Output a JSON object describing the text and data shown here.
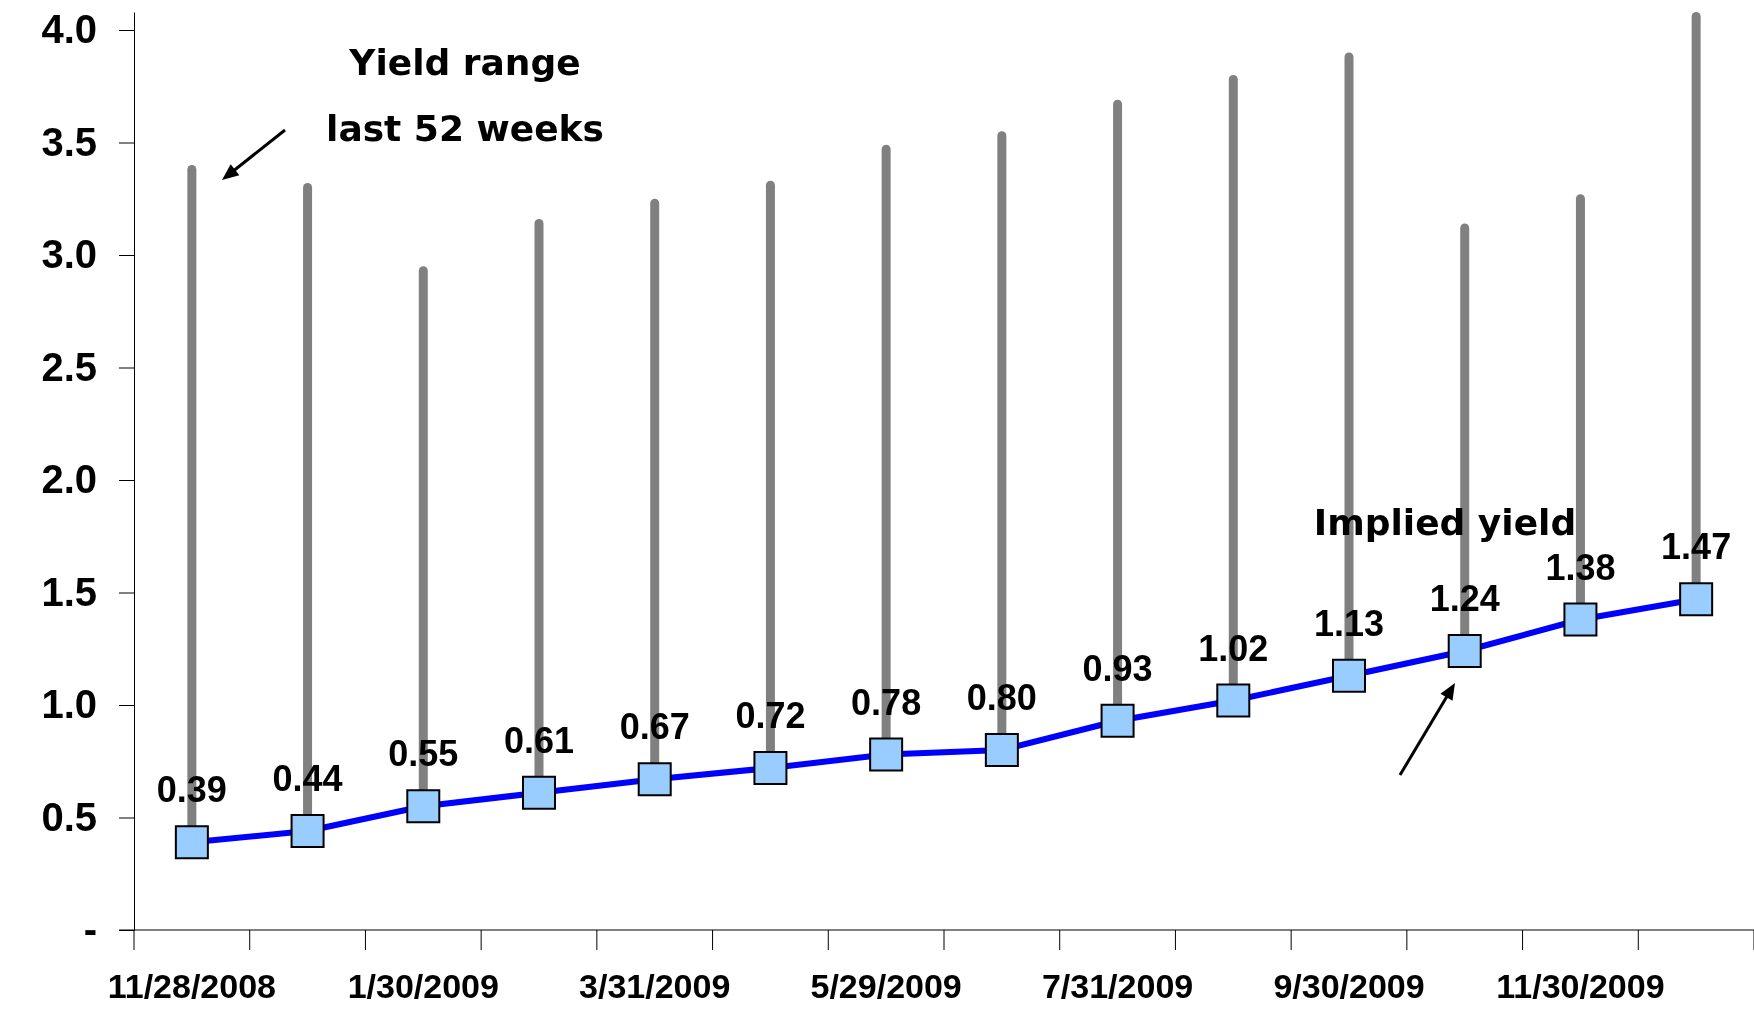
{
  "chart_data": {
    "type": "line",
    "categories": [
      "11/28/2008",
      null,
      "1/30/2009",
      null,
      "3/31/2009",
      null,
      "5/29/2009",
      null,
      "7/31/2009",
      null,
      "9/30/2009",
      null,
      "11/30/2009",
      null
    ],
    "series": [
      {
        "type": "bar",
        "color": "#808080",
        "base": [
          0.39,
          0.44,
          0.55,
          0.61,
          0.67,
          0.72,
          0.78,
          0.8,
          0.93,
          1.02,
          1.13,
          1.24,
          1.38,
          1.47
        ],
        "values": [
          3.01,
          2.88,
          2.4,
          2.55,
          2.58,
          2.61,
          2.71,
          2.75,
          2.76,
          2.78,
          2.77,
          1.9,
          1.89,
          2.61
        ]
      },
      {
        "color": "#0000ff",
        "marker": "square",
        "values": [
          0.39,
          0.44,
          0.55,
          0.61,
          0.67,
          0.72,
          0.78,
          0.8,
          0.93,
          1.02,
          1.13,
          1.24,
          1.38,
          1.47
        ],
        "value_labels": [
          "0.39",
          "0.44",
          "0.55",
          "0.61",
          "0.67",
          "0.72",
          "0.78",
          "0.80",
          "0.93",
          "1.02",
          "1.13",
          "1.24",
          "1.38",
          "1.47"
        ]
      }
    ],
    "ylim": [
      0,
      4.08
    ],
    "yticks": [
      {
        "value": 0,
        "label": "-"
      },
      {
        "value": 0.5,
        "label": "0.5"
      },
      {
        "value": 1,
        "label": "1.0"
      },
      {
        "value": 1.5,
        "label": "1.5"
      },
      {
        "value": 2,
        "label": "2.0"
      },
      {
        "value": 2.5,
        "label": "2.5"
      },
      {
        "value": 3,
        "label": "3.0"
      },
      {
        "value": 3.5,
        "label": "3.5"
      },
      {
        "value": 4,
        "label": "4.0"
      }
    ],
    "grid": false,
    "annotations": [
      "Yield range last 52 weeks",
      "Implied yield"
    ]
  }
}
